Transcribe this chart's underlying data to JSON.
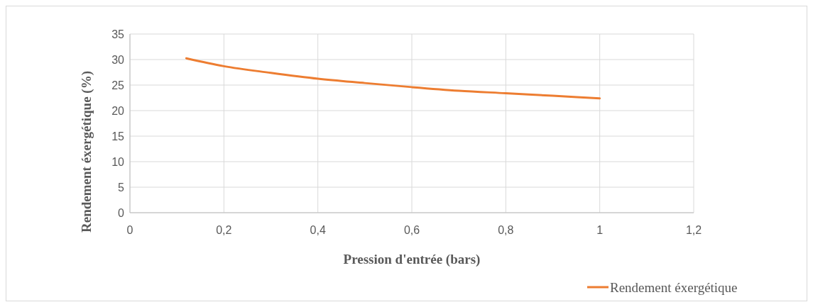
{
  "chart_data": {
    "type": "line",
    "xlabel": "Pression d'entrée (bars)",
    "ylabel": "Rendement éxergétique (%)",
    "x": [
      0.12,
      0.2,
      0.3,
      0.4,
      0.5,
      0.6,
      0.7,
      0.8,
      0.9,
      1
    ],
    "series": [
      {
        "name": "Rendement éxergétique",
        "color": "#ed7d31",
        "values": [
          30.25,
          28.7,
          27.4,
          26.25,
          25.4,
          24.6,
          23.9,
          23.4,
          22.9,
          22.4
        ]
      }
    ],
    "xlim": [
      0,
      1.2
    ],
    "xticks": [
      {
        "value": 0,
        "label": "0"
      },
      {
        "value": 0.2,
        "label": "0,2"
      },
      {
        "value": 0.4,
        "label": "0,4"
      },
      {
        "value": 0.6,
        "label": "0,6"
      },
      {
        "value": 0.8,
        "label": "0,8"
      },
      {
        "value": 1,
        "label": "1"
      },
      {
        "value": 1.2,
        "label": "1,2"
      }
    ],
    "ylim": [
      0,
      35
    ],
    "yticks": [
      0,
      5,
      10,
      15,
      20,
      25,
      30,
      35
    ],
    "grid": true,
    "legend": "bottom right",
    "marker": "none",
    "line_style": "solid"
  }
}
